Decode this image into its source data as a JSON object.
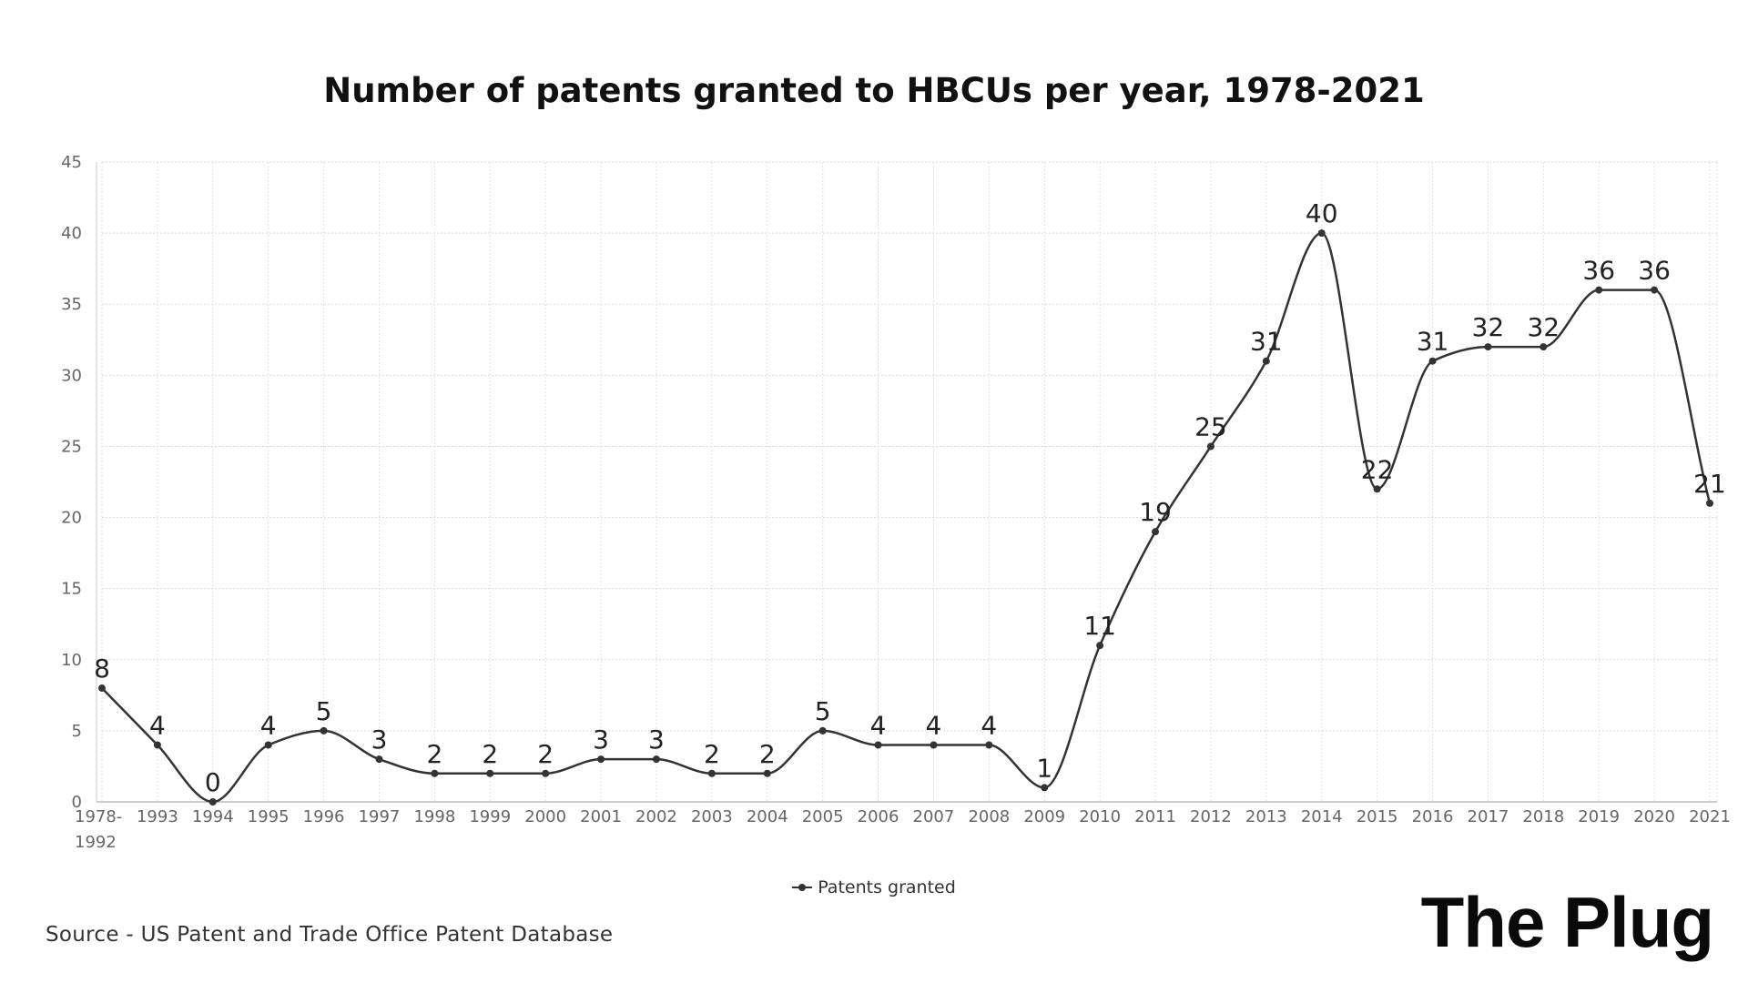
{
  "chart_data": {
    "type": "line",
    "title": "Number of patents granted to HBCUs per year, 1978-2021",
    "xlabel": "",
    "ylabel": "",
    "categories": [
      "1978-1992",
      "1993",
      "1994",
      "1995",
      "1996",
      "1997",
      "1998",
      "1999",
      "2000",
      "2001",
      "2002",
      "2003",
      "2004",
      "2005",
      "2006",
      "2007",
      "2008",
      "2009",
      "2010",
      "2011",
      "2012",
      "2013",
      "2014",
      "2015",
      "2016",
      "2017",
      "2018",
      "2019",
      "2020",
      "2021"
    ],
    "category_label_lines": [
      [
        "1978-",
        "1992"
      ],
      [
        "1993"
      ],
      [
        "1994"
      ],
      [
        "1995"
      ],
      [
        "1996"
      ],
      [
        "1997"
      ],
      [
        "1998"
      ],
      [
        "1999"
      ],
      [
        "2000"
      ],
      [
        "2001"
      ],
      [
        "2002"
      ],
      [
        "2003"
      ],
      [
        "2004"
      ],
      [
        "2005"
      ],
      [
        "2006"
      ],
      [
        "2007"
      ],
      [
        "2008"
      ],
      [
        "2009"
      ],
      [
        "2010"
      ],
      [
        "2011"
      ],
      [
        "2012"
      ],
      [
        "2013"
      ],
      [
        "2014"
      ],
      [
        "2015"
      ],
      [
        "2016"
      ],
      [
        "2017"
      ],
      [
        "2018"
      ],
      [
        "2019"
      ],
      [
        "2020"
      ],
      [
        "2021"
      ]
    ],
    "series": [
      {
        "name": "Patents granted",
        "values": [
          8,
          4,
          0,
          4,
          5,
          3,
          2,
          2,
          2,
          3,
          3,
          2,
          2,
          5,
          4,
          4,
          4,
          1,
          11,
          19,
          25,
          31,
          40,
          22,
          31,
          32,
          32,
          36,
          36,
          21
        ]
      }
    ],
    "ylim": [
      0,
      45
    ],
    "yticks": [
      0,
      5,
      10,
      15,
      20,
      25,
      30,
      35,
      40,
      45
    ],
    "grid": true,
    "data_labels": true,
    "legend_position": "bottom-center",
    "line_color": "#333333"
  },
  "source": "Source - US Patent and Trade Office Patent Database",
  "brand": "The Plug"
}
